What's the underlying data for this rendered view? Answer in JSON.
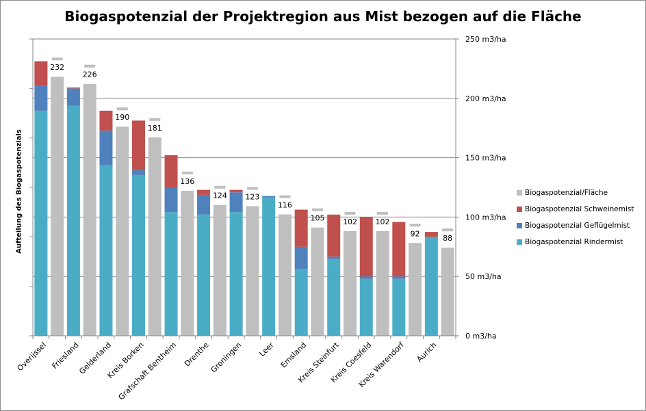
{
  "chart_data": {
    "type": "bar",
    "title": "Biogaspotenzial der Projektregion aus Mist bezogen auf die Fläche",
    "ylabel_left": "Aufteilung des Biogaspotenzials",
    "y_axis_right": {
      "unit": "m3/ha",
      "ylim": [
        0,
        250
      ],
      "ticks": [
        "0 m3/ha",
        "50 m3/ha",
        "100 m3/ha",
        "150 m3/ha",
        "200 m3/ha",
        "250 m3/ha"
      ]
    },
    "y_axis_left": {
      "ylim": [
        0,
        1.2
      ],
      "tick_labels_shown": false
    },
    "grid": true,
    "legend_position": "right",
    "categories": [
      "Overijssel",
      "Friesland",
      "Gelderland",
      "Kreis Borken",
      "Grafschaft Bentheim",
      "Drenthe",
      "Groningen",
      "Leer",
      "Emsland",
      "Kreis Steinfurt",
      "Kreis Coesfeld",
      "Kreis Warendorf",
      "Aurich"
    ],
    "stacked_series": [
      {
        "name": "Biogaspotenzial Rindermist",
        "color": "#4bacc6",
        "values": [
          0.91,
          0.93,
          0.69,
          0.65,
          0.5,
          0.49,
          0.5,
          0.56,
          0.27,
          0.31,
          0.23,
          0.23,
          0.4
        ]
      },
      {
        "name": "Biogaspotenzial Geflügelmist",
        "color": "#4f81bd",
        "values": [
          0.1,
          0.07,
          0.14,
          0.02,
          0.1,
          0.08,
          0.08,
          0.005,
          0.09,
          0.01,
          0.01,
          0.01,
          0.0
        ]
      },
      {
        "name": "Biogaspotenzial Schweinemist",
        "color": "#c0504d",
        "values": [
          0.1,
          0.004,
          0.08,
          0.2,
          0.13,
          0.02,
          0.01,
          0.0,
          0.15,
          0.17,
          0.24,
          0.22,
          0.02
        ]
      }
    ],
    "area_series": {
      "name": "Biogaspotenzial/Fläche",
      "color": "#bfbfbf",
      "values": [
        232,
        226,
        190,
        181,
        136,
        124,
        123,
        116,
        105,
        102,
        102,
        92,
        88
      ],
      "data_labels": [
        "232",
        "226",
        "190",
        "181",
        "136",
        "124",
        "123",
        "116",
        "105",
        "102",
        "102",
        "92",
        "88"
      ]
    },
    "legend": [
      "Biogaspotenzial/Fläche",
      "Biogaspotenzial Schweinemist",
      "Biogaspotenzial Geflügelmist",
      "Biogaspotenzial Rindermist"
    ]
  }
}
